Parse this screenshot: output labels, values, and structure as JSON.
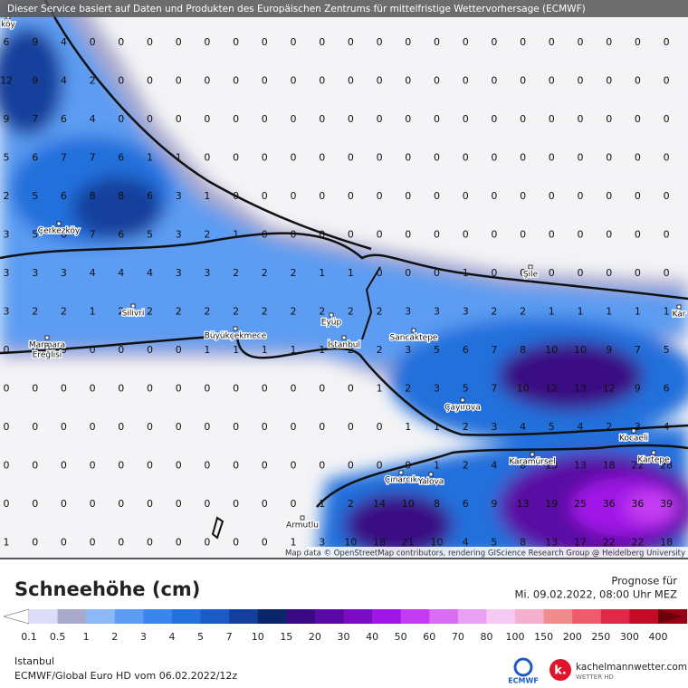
{
  "header": {
    "banner": "Dieser Service basiert auf Daten und Produkten des Europäischen Zentrums für mittelfristige Wettervorhersage  (ECMWF)",
    "attribution": "Map data © OpenStreetMap contributors, rendering GIScience Research Group @ Heidelberg University"
  },
  "places": [
    {
      "label": "köy"
    },
    {
      "label": "Çerkezköy"
    },
    {
      "label": "Silivri"
    },
    {
      "label": "Marmara"
    },
    {
      "label": "Ereğlisi"
    },
    {
      "label": "Büyükçekmece"
    },
    {
      "label": "Eyüp"
    },
    {
      "label": "İstanbul"
    },
    {
      "label": "Sancaktepe"
    },
    {
      "label": "Çayırova"
    },
    {
      "label": "Şile"
    },
    {
      "label": "Kar"
    },
    {
      "label": "Kocaeli"
    },
    {
      "label": "Karamürsel"
    },
    {
      "label": "Kartepe"
    },
    {
      "label": "Çınarcık"
    },
    {
      "label": "Yalova"
    },
    {
      "label": "Armutlu"
    }
  ],
  "grid": {
    "rows": [
      [
        6,
        9,
        4,
        0,
        0,
        0,
        0,
        0,
        0,
        0,
        0,
        0,
        0,
        0,
        0,
        0,
        0,
        0,
        0,
        0,
        0,
        0,
        0,
        0
      ],
      [
        12,
        9,
        4,
        2,
        0,
        0,
        0,
        0,
        0,
        0,
        0,
        0,
        0,
        0,
        0,
        0,
        0,
        0,
        0,
        0,
        0,
        0,
        0,
        0
      ],
      [
        9,
        7,
        6,
        4,
        0,
        0,
        0,
        0,
        0,
        0,
        0,
        0,
        0,
        0,
        0,
        0,
        0,
        0,
        0,
        0,
        0,
        0,
        0,
        0
      ],
      [
        5,
        6,
        7,
        7,
        6,
        1,
        1,
        0,
        0,
        0,
        0,
        0,
        0,
        0,
        0,
        0,
        0,
        0,
        0,
        0,
        0,
        0,
        0,
        0
      ],
      [
        2,
        5,
        6,
        8,
        8,
        6,
        3,
        1,
        0,
        0,
        0,
        0,
        0,
        0,
        0,
        0,
        0,
        0,
        0,
        0,
        0,
        0,
        0,
        0
      ],
      [
        3,
        5,
        6,
        7,
        6,
        5,
        3,
        2,
        1,
        0,
        0,
        0,
        0,
        0,
        0,
        0,
        0,
        0,
        0,
        0,
        0,
        0,
        0,
        0
      ],
      [
        3,
        3,
        3,
        4,
        4,
        4,
        3,
        3,
        2,
        2,
        2,
        1,
        1,
        0,
        0,
        0,
        1,
        0,
        0,
        0,
        0,
        0,
        0,
        0
      ],
      [
        3,
        2,
        2,
        1,
        2,
        2,
        2,
        2,
        2,
        2,
        2,
        2,
        2,
        2,
        3,
        3,
        3,
        2,
        2,
        1,
        1,
        1,
        1,
        1
      ],
      [
        0,
        0,
        0,
        0,
        0,
        0,
        0,
        1,
        1,
        1,
        1,
        1,
        2,
        2,
        3,
        5,
        6,
        7,
        8,
        10,
        10,
        9,
        7,
        5
      ],
      [
        0,
        0,
        0,
        0,
        0,
        0,
        0,
        0,
        0,
        0,
        0,
        0,
        0,
        1,
        2,
        3,
        5,
        7,
        10,
        12,
        13,
        12,
        9,
        6
      ],
      [
        0,
        0,
        0,
        0,
        0,
        0,
        0,
        0,
        0,
        0,
        0,
        0,
        0,
        0,
        1,
        1,
        2,
        3,
        4,
        5,
        4,
        2,
        3,
        4
      ],
      [
        0,
        0,
        0,
        0,
        0,
        0,
        0,
        0,
        0,
        0,
        0,
        0,
        0,
        0,
        0,
        1,
        2,
        4,
        8,
        13,
        13,
        18,
        22,
        28
      ],
      [
        0,
        0,
        0,
        0,
        0,
        0,
        0,
        0,
        0,
        0,
        0,
        1,
        2,
        14,
        10,
        8,
        6,
        9,
        13,
        19,
        25,
        36,
        36,
        39
      ],
      [
        1,
        0,
        0,
        0,
        0,
        0,
        0,
        0,
        0,
        0,
        1,
        3,
        10,
        18,
        21,
        10,
        4,
        5,
        8,
        13,
        17,
        22,
        22,
        18
      ]
    ]
  },
  "legend": {
    "title": "Schneehöhe (cm)",
    "forecast_label": "Prognose für",
    "forecast_time": "Mi. 09.02.2022, 08:00 Uhr MEZ",
    "ticks": [
      0.1,
      0.5,
      1,
      2,
      3,
      4,
      5,
      7,
      10,
      15,
      20,
      30,
      40,
      50,
      60,
      70,
      80,
      100,
      150,
      200,
      250,
      300,
      400
    ],
    "colors": [
      "#ffffff",
      "#dcdcf6",
      "#a9a9cc",
      "#8cb8f5",
      "#5c9cf2",
      "#3b86ee",
      "#2470dc",
      "#1a5cc4",
      "#143f9c",
      "#0b256a",
      "#3a0a84",
      "#5a0aa4",
      "#7c0cc4",
      "#a016e6",
      "#c43cf2",
      "#d86cf2",
      "#eaa0f2",
      "#f4caf4",
      "#f4b0cc",
      "#f08c8c",
      "#ee5c6c",
      "#dc2a48",
      "#c20c26",
      "#9a0014",
      "#6e000c"
    ]
  },
  "footer": {
    "location": "Istanbul",
    "model": "ECMWF/Global Euro HD vom  06.02.2022/12z",
    "logo1": "ECMWF",
    "logo2": "kachelmannwetter.com",
    "logo2_sub": "WETTER HD"
  }
}
